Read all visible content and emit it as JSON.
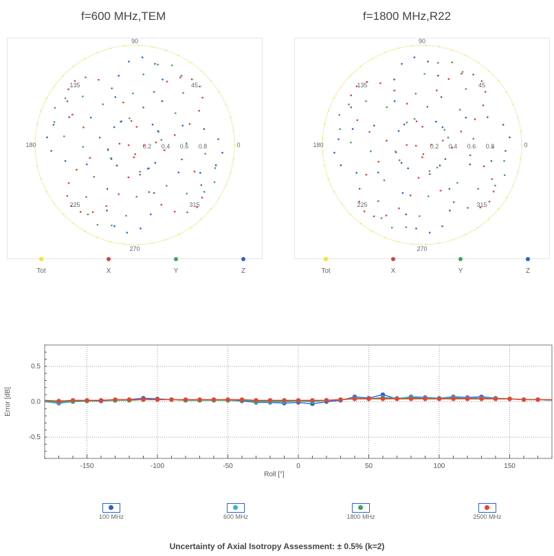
{
  "polar_charts": [
    {
      "title": "f=600 MHz,TEM",
      "angle_labels": [
        "90",
        "45",
        "0",
        "315",
        "270",
        "225",
        "180",
        "135"
      ],
      "radial_labels": [
        "0.2",
        "0.4",
        "0.6",
        "0.8"
      ],
      "legend": [
        {
          "label": "Tot",
          "color": "#f2e61a"
        },
        {
          "label": "X",
          "color": "#e33b3b"
        },
        {
          "label": "Y",
          "color": "#3aa55a"
        },
        {
          "label": "Z",
          "color": "#2b5fd6"
        }
      ]
    },
    {
      "title": "f=1800 MHz,R22",
      "angle_labels": [
        "90",
        "45",
        "0",
        "315",
        "270",
        "225",
        "180",
        "135"
      ],
      "radial_labels": [
        "0.2",
        "0.4",
        "0.6",
        "0.8"
      ],
      "legend": [
        {
          "label": "Tot",
          "color": "#f2e61a"
        },
        {
          "label": "X",
          "color": "#e33b3b"
        },
        {
          "label": "Y",
          "color": "#3aa55a"
        },
        {
          "label": "Z",
          "color": "#2b5fd6"
        }
      ]
    }
  ],
  "chart_data": [
    {
      "type": "scatter",
      "title": "f=600 MHz,TEM",
      "coordinate_system": "polar",
      "r_ticks": [
        0.2,
        0.4,
        0.6,
        0.8
      ],
      "theta_ticks_deg": [
        0,
        45,
        90,
        135,
        180,
        225,
        270,
        315
      ],
      "series": [
        {
          "name": "Tot",
          "color": "#f2e61a",
          "r_constant": 1.0
        },
        {
          "name": "X",
          "color": "#e33b3b",
          "pattern": "r = |cos(theta)| / |sin(theta)| rosettes"
        },
        {
          "name": "Y",
          "color": "#3aa55a",
          "pattern": "rosette"
        },
        {
          "name": "Z",
          "color": "#2b5fd6",
          "pattern": "rosette"
        }
      ]
    },
    {
      "type": "scatter",
      "title": "f=1800 MHz,R22",
      "coordinate_system": "polar",
      "r_ticks": [
        0.2,
        0.4,
        0.6,
        0.8
      ],
      "theta_ticks_deg": [
        0,
        45,
        90,
        135,
        180,
        225,
        270,
        315
      ],
      "series": [
        {
          "name": "Tot",
          "color": "#f2e61a",
          "r_constant": 1.0
        },
        {
          "name": "X",
          "color": "#e33b3b",
          "pattern": "rosette"
        },
        {
          "name": "Y",
          "color": "#3aa55a",
          "pattern": "rosette"
        },
        {
          "name": "Z",
          "color": "#2b5fd6",
          "pattern": "rosette"
        }
      ]
    },
    {
      "type": "line",
      "xlabel": "Roll [°]",
      "ylabel": "Error [dB]",
      "xlim": [
        -180,
        180
      ],
      "ylim": [
        -0.8,
        0.8
      ],
      "xticks": [
        -150,
        -100,
        -50,
        0,
        50,
        100,
        150
      ],
      "yticks": [
        -0.5,
        0.0,
        0.5
      ],
      "ytick_labels": [
        "-0.5",
        "0.0",
        "0.5"
      ],
      "grid": true,
      "x": [
        -180,
        -170,
        -160,
        -150,
        -140,
        -130,
        -120,
        -110,
        -100,
        -90,
        -80,
        -70,
        -60,
        -50,
        -40,
        -30,
        -20,
        -10,
        0,
        10,
        20,
        30,
        40,
        50,
        60,
        70,
        80,
        90,
        100,
        110,
        120,
        130,
        140,
        150,
        160,
        170,
        180
      ],
      "series": [
        {
          "name": "100 MHz",
          "color": "#2b5fd6",
          "values": [
            0.0,
            -0.02,
            0.0,
            0.01,
            0.01,
            0.02,
            0.03,
            0.05,
            0.04,
            0.03,
            0.02,
            0.02,
            0.03,
            0.02,
            0.01,
            -0.01,
            -0.01,
            -0.02,
            -0.01,
            -0.03,
            0.0,
            0.02,
            0.07,
            0.05,
            0.1,
            0.04,
            0.07,
            0.06,
            0.05,
            0.07,
            0.06,
            0.07,
            0.05,
            0.04,
            0.03,
            0.03,
            0.02
          ]
        },
        {
          "name": "600 MHz",
          "color": "#36b4c8",
          "values": [
            0.0,
            -0.01,
            0.0,
            0.01,
            0.02,
            0.02,
            0.02,
            0.03,
            0.03,
            0.03,
            0.02,
            0.02,
            0.02,
            0.02,
            0.02,
            0.0,
            0.0,
            0.0,
            0.01,
            0.0,
            0.02,
            0.03,
            0.05,
            0.04,
            0.06,
            0.05,
            0.06,
            0.05,
            0.05,
            0.06,
            0.05,
            0.05,
            0.05,
            0.04,
            0.03,
            0.03,
            0.02
          ]
        },
        {
          "name": "1800 MHz",
          "color": "#3aa55a",
          "values": [
            0.01,
            0.0,
            0.01,
            0.01,
            0.02,
            0.02,
            0.02,
            0.03,
            0.03,
            0.03,
            0.02,
            0.02,
            0.02,
            0.02,
            0.02,
            0.01,
            0.01,
            0.01,
            0.01,
            0.01,
            0.02,
            0.03,
            0.04,
            0.04,
            0.05,
            0.04,
            0.05,
            0.04,
            0.04,
            0.05,
            0.04,
            0.04,
            0.04,
            0.04,
            0.03,
            0.03,
            0.02
          ]
        },
        {
          "name": "2500 MHz",
          "color": "#e8442e",
          "values": [
            0.02,
            0.01,
            0.02,
            0.02,
            0.02,
            0.03,
            0.03,
            0.03,
            0.03,
            0.03,
            0.03,
            0.03,
            0.03,
            0.03,
            0.03,
            0.02,
            0.02,
            0.02,
            0.02,
            0.02,
            0.02,
            0.03,
            0.04,
            0.04,
            0.04,
            0.04,
            0.04,
            0.04,
            0.04,
            0.04,
            0.04,
            0.04,
            0.04,
            0.04,
            0.03,
            0.03,
            0.03
          ]
        }
      ]
    }
  ],
  "line_chart": {
    "xlabel": "Roll [°]",
    "ylabel": "Error [dB]",
    "legend": [
      {
        "label": "100 MHz",
        "color": "#2b5fd6"
      },
      {
        "label": "600 MHz",
        "color": "#36b4c8"
      },
      {
        "label": "1800 MHz",
        "color": "#3aa55a"
      },
      {
        "label": "2500 MHz",
        "color": "#e8442e"
      }
    ]
  },
  "footer": {
    "note": "Uncertainty of Axial Isotropy Assessment: ± 0.5% (k=2)"
  }
}
